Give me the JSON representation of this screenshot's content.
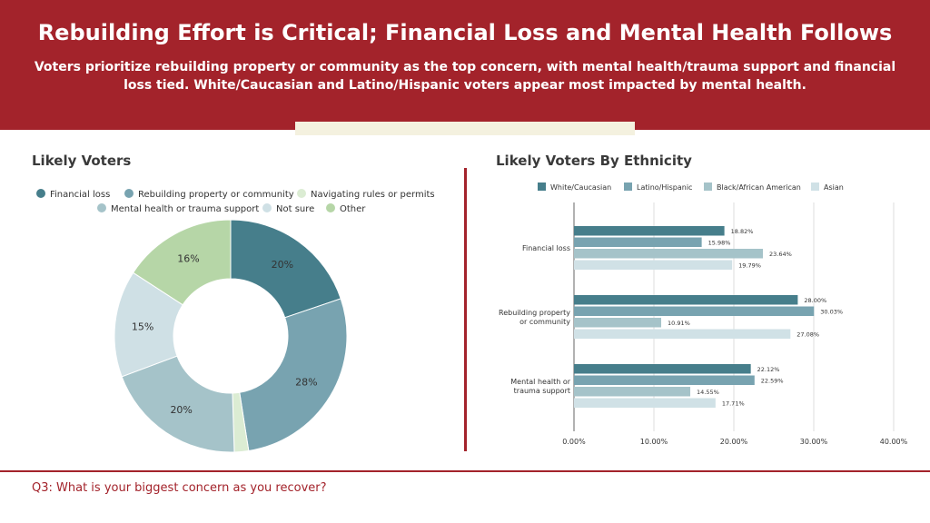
{
  "header": {
    "title": "Rebuilding Effort is Critical; Financial Loss and Mental Health Follows",
    "subtitle": "Voters prioritize rebuilding property or community as the top concern, with mental health/trauma support and financial loss tied. White/Caucasian and Latino/Hispanic voters appear most impacted by mental health."
  },
  "footer": {
    "question": "Q3: What is your biggest concern as you recover?"
  },
  "colors": {
    "brand": "#a3232b",
    "strip": "#f4f1df"
  },
  "chart_data": [
    {
      "type": "pie",
      "title": "Likely Voters",
      "labels": [
        "Financial loss",
        "Rebuilding property or community",
        "Navigating rules or permits",
        "Mental health or trauma support",
        "Not sure",
        "Other"
      ],
      "values": [
        20,
        28,
        2,
        20,
        15,
        16
      ],
      "value_labels": [
        "20%",
        "28%",
        "",
        "20%",
        "15%",
        "16%"
      ],
      "colors": [
        "#467e8b",
        "#78a3b0",
        "#dbecd3",
        "#a5c3c9",
        "#cfe0e5",
        "#b6d6a7"
      ],
      "legend_position": "top"
    },
    {
      "type": "bar",
      "orientation": "horizontal",
      "title": "Likely Voters By Ethnicity",
      "categories": [
        "Financial loss",
        "Rebuilding property or community",
        "Mental health or trauma support"
      ],
      "category_labels": [
        [
          "Financial loss"
        ],
        [
          "Rebuilding property",
          "or community"
        ],
        [
          "Mental health or",
          "trauma support"
        ]
      ],
      "series": [
        {
          "name": "White/Caucasian",
          "color": "#467e8b",
          "values": [
            18.82,
            28.0,
            22.12
          ],
          "labels": [
            "18.82%",
            "28.00%",
            "22.12%"
          ]
        },
        {
          "name": "Latino/Hispanic",
          "color": "#78a3b0",
          "values": [
            15.98,
            30.03,
            22.59
          ],
          "labels": [
            "15.98%",
            "30.03%",
            "22.59%"
          ]
        },
        {
          "name": "Black/African American",
          "color": "#a5c3c9",
          "values": [
            23.64,
            10.91,
            14.55
          ],
          "labels": [
            "23.64%",
            "10.91%",
            "14.55%"
          ]
        },
        {
          "name": "Asian",
          "color": "#d0e1e6",
          "values": [
            19.79,
            27.08,
            17.71
          ],
          "labels": [
            "19.79%",
            "27.08%",
            "17.71%"
          ]
        }
      ],
      "xlim": [
        0,
        40
      ],
      "x_ticks": [
        "0.00%",
        "10.00%",
        "20.00%",
        "30.00%",
        "40.00%"
      ],
      "grid": true,
      "legend_position": "top"
    }
  ]
}
